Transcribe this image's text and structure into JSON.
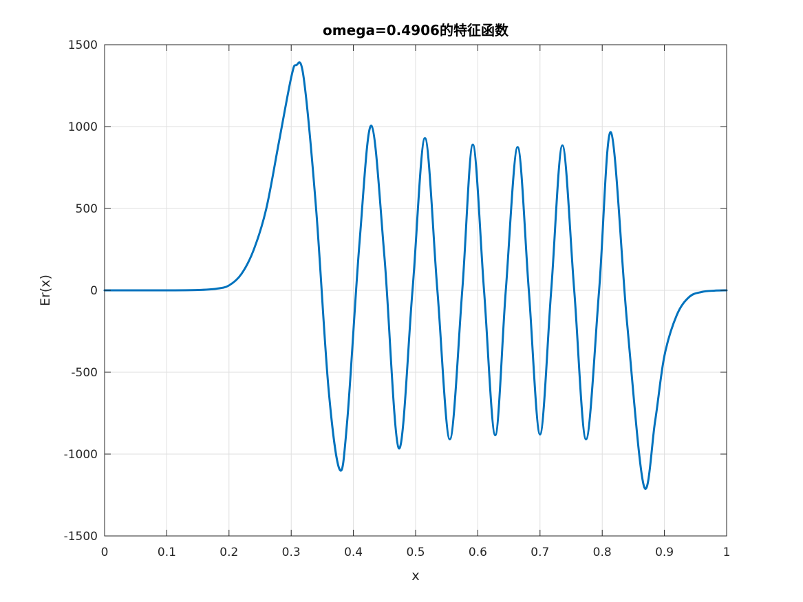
{
  "chart_data": {
    "type": "line",
    "title": "omega=0.4906的特征函数",
    "xlabel": "x",
    "ylabel": "Er(x)",
    "xlim": [
      0,
      1
    ],
    "ylim": [
      -1500,
      1500
    ],
    "grid": true,
    "xticks": [
      0,
      0.1,
      0.2,
      0.3,
      0.4,
      0.5,
      0.6,
      0.7,
      0.8,
      0.9,
      1
    ],
    "xtick_labels": [
      "0",
      "0.1",
      "0.2",
      "0.3",
      "0.4",
      "0.5",
      "0.6",
      "0.7",
      "0.8",
      "0.9",
      "1"
    ],
    "yticks": [
      -1500,
      -1000,
      -500,
      0,
      500,
      1000,
      1500
    ],
    "ytick_labels": [
      "-1500",
      "-1000",
      "-500",
      "0",
      "500",
      "1000",
      "1500"
    ],
    "series": [
      {
        "color": "#0072BD",
        "x": [
          0,
          0.1,
          0.15,
          0.18,
          0.2,
          0.22,
          0.24,
          0.26,
          0.28,
          0.3,
          0.308,
          0.32,
          0.34,
          0.36,
          0.378,
          0.39,
          0.41,
          0.429,
          0.45,
          0.473,
          0.495,
          0.515,
          0.535,
          0.555,
          0.575,
          0.592,
          0.61,
          0.628,
          0.645,
          0.664,
          0.682,
          0.7,
          0.718,
          0.736,
          0.755,
          0.774,
          0.795,
          0.814,
          0.84,
          0.867,
          0.885,
          0.9,
          0.92,
          0.94,
          0.96,
          0.98,
          1
        ],
        "y": [
          0,
          0,
          2,
          10,
          30,
          100,
          250,
          500,
          900,
          1300,
          1375,
          1300,
          500,
          -600,
          -1095,
          -800,
          300,
          1005,
          200,
          -965,
          0,
          930,
          0,
          -910,
          0,
          890,
          0,
          -885,
          0,
          875,
          0,
          -880,
          0,
          885,
          0,
          -910,
          0,
          965,
          -200,
          -1195,
          -800,
          -400,
          -150,
          -40,
          -10,
          -2,
          0
        ]
      }
    ]
  }
}
